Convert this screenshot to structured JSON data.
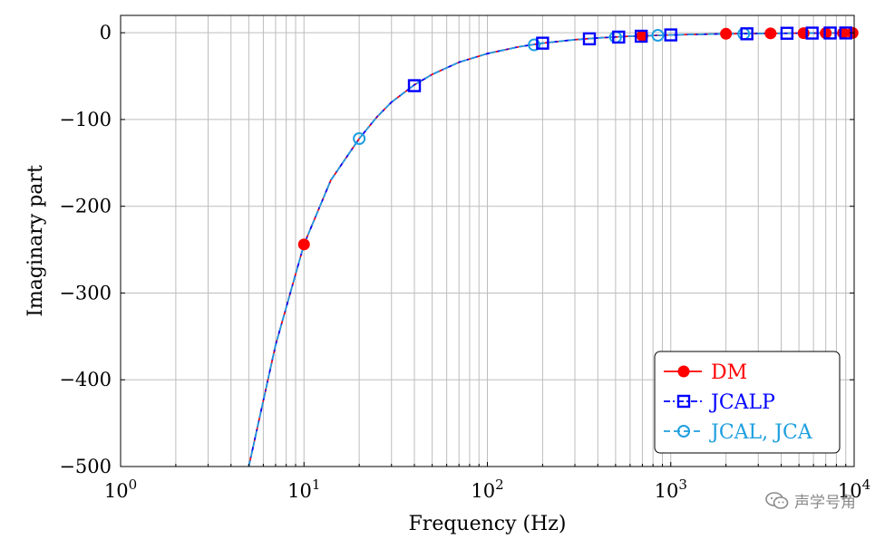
{
  "chart_data": {
    "type": "line",
    "title": "",
    "xlabel": "Frequency (Hz)",
    "ylabel": "Imaginary part",
    "xscale": "log",
    "xlim": [
      1,
      10000
    ],
    "ylim": [
      -500,
      20
    ],
    "grid": true,
    "legend_position": "bottom-right",
    "x_ticks": [
      {
        "value": 1,
        "base": "10",
        "exp": "0"
      },
      {
        "value": 10,
        "base": "10",
        "exp": "1"
      },
      {
        "value": 100,
        "base": "10",
        "exp": "2"
      },
      {
        "value": 1000,
        "base": "10",
        "exp": "3"
      },
      {
        "value": 10000,
        "base": "10",
        "exp": "4"
      }
    ],
    "y_ticks": [
      {
        "value": 0,
        "label": "0"
      },
      {
        "value": -100,
        "label": "−100"
      },
      {
        "value": -200,
        "label": "−200"
      },
      {
        "value": -300,
        "label": "−300"
      },
      {
        "value": -400,
        "label": "−400"
      },
      {
        "value": -500,
        "label": "−500"
      }
    ],
    "curve": {
      "x": [
        5,
        7,
        10,
        14,
        20,
        25,
        30,
        40,
        50,
        70,
        100,
        150,
        200,
        300,
        400,
        600,
        1000,
        2000,
        5000,
        10000
      ],
      "y": [
        -500,
        -360,
        -244,
        -170,
        -122,
        -97,
        -80,
        -60,
        -48,
        -34,
        -24,
        -16,
        -12,
        -8,
        -6,
        -4,
        -2.5,
        -1.2,
        -0.5,
        -0.2
      ]
    },
    "series": [
      {
        "name": "DM",
        "color": "#ff0000",
        "marker": "filled-circle",
        "line": "solid",
        "x": [
          10,
          700,
          2000,
          3500,
          5300,
          7000,
          8700,
          9800
        ],
        "y": [
          -244,
          -3.5,
          -1.2,
          -0.7,
          -0.5,
          -0.4,
          -0.3,
          -0.2
        ]
      },
      {
        "name": "JCALP",
        "color": "#0000ff",
        "marker": "open-square",
        "line": "dashdot",
        "x": [
          40,
          200,
          360,
          520,
          690,
          1000,
          2600,
          4300,
          5900,
          7400,
          9000
        ],
        "y": [
          -61,
          -12,
          -7,
          -5,
          -4,
          -2.5,
          -1.2,
          -0.6,
          -0.4,
          -0.3,
          -0.25
        ]
      },
      {
        "name": "JCAL, JCA",
        "color": "#1e9fe0",
        "marker": "open-circle",
        "line": "dashed",
        "x": [
          20,
          180,
          500,
          850,
          2500
        ],
        "y": [
          -122,
          -14,
          -5,
          -3,
          -1.3
        ]
      }
    ]
  },
  "watermark": {
    "text": "声学号角",
    "icon": "wechat-icon"
  }
}
